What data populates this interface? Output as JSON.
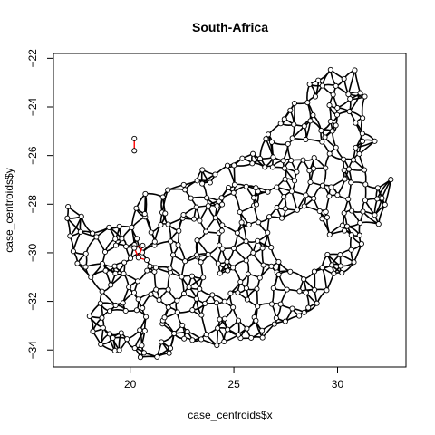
{
  "chart_data": {
    "type": "scatter",
    "title": "South-Africa",
    "xlabel": "case_centroids$x",
    "ylabel": "case_centroids$y",
    "xlim": [
      16.3,
      33.3
    ],
    "ylim": [
      -34.7,
      -21.8
    ],
    "x_ticks": [
      20,
      25,
      30
    ],
    "y_ticks": [
      -22,
      -24,
      -26,
      -28,
      -30,
      -32,
      -34
    ],
    "grid": false,
    "legend": "none",
    "colors": {
      "points": "#000000",
      "network": "#000000",
      "highlight": "#ff0000"
    },
    "highlight_points": [
      {
        "x": 20.2,
        "y": -25.3
      },
      {
        "x": 20.2,
        "y": -25.8
      },
      {
        "x": 20.2,
        "y": -29.8
      },
      {
        "x": 20.6,
        "y": -29.7
      },
      {
        "x": 20.4,
        "y": -30.2
      },
      {
        "x": 20.8,
        "y": -30.3
      }
    ],
    "highlight_edges": [
      [
        20.2,
        -25.3,
        20.2,
        -25.8
      ],
      [
        20.2,
        -29.8,
        20.6,
        -29.7
      ],
      [
        20.6,
        -29.7,
        20.4,
        -30.2
      ],
      [
        20.4,
        -30.2,
        20.8,
        -30.3
      ],
      [
        20.2,
        -29.8,
        20.4,
        -30.2
      ]
    ],
    "outline": [
      [
        16.5,
        -28.6
      ],
      [
        17.0,
        -28.0
      ],
      [
        17.6,
        -28.3
      ],
      [
        18.2,
        -28.9
      ],
      [
        19.2,
        -28.9
      ],
      [
        20.0,
        -28.4
      ],
      [
        20.5,
        -27.6
      ],
      [
        21.5,
        -27.2
      ],
      [
        22.6,
        -26.6
      ],
      [
        24.0,
        -26.3
      ],
      [
        25.2,
        -25.8
      ],
      [
        25.9,
        -25.3
      ],
      [
        26.6,
        -25.0
      ],
      [
        27.4,
        -24.3
      ],
      [
        28.3,
        -23.4
      ],
      [
        29.0,
        -22.6
      ],
      [
        29.8,
        -22.3
      ],
      [
        30.6,
        -22.3
      ],
      [
        31.2,
        -22.6
      ],
      [
        31.4,
        -23.4
      ],
      [
        31.6,
        -24.6
      ],
      [
        31.9,
        -25.8
      ],
      [
        31.8,
        -26.9
      ],
      [
        32.9,
        -26.9
      ],
      [
        32.9,
        -27.4
      ],
      [
        32.3,
        -28.7
      ],
      [
        31.8,
        -29.3
      ],
      [
        31.2,
        -29.8
      ],
      [
        30.6,
        -30.8
      ],
      [
        29.7,
        -31.7
      ],
      [
        28.7,
        -32.4
      ],
      [
        27.6,
        -33.1
      ],
      [
        26.2,
        -33.8
      ],
      [
        25.3,
        -33.9
      ],
      [
        24.6,
        -34.1
      ],
      [
        23.6,
        -33.9
      ],
      [
        22.6,
        -34.0
      ],
      [
        21.6,
        -34.3
      ],
      [
        20.8,
        -34.3
      ],
      [
        20.0,
        -34.8
      ],
      [
        19.4,
        -34.6
      ],
      [
        18.8,
        -34.3
      ],
      [
        18.4,
        -34.1
      ],
      [
        18.1,
        -33.8
      ],
      [
        18.0,
        -33.1
      ],
      [
        17.9,
        -32.5
      ],
      [
        18.2,
        -31.8
      ],
      [
        17.6,
        -30.8
      ],
      [
        17.0,
        -29.8
      ],
      [
        16.7,
        -29.1
      ]
    ],
    "lesotho_hole": [
      [
        27.0,
        -28.6
      ],
      [
        27.8,
        -28.7
      ],
      [
        28.8,
        -28.6
      ],
      [
        29.4,
        -29.2
      ],
      [
        29.3,
        -29.9
      ],
      [
        28.6,
        -30.4
      ],
      [
        27.8,
        -30.6
      ],
      [
        27.2,
        -30.2
      ],
      [
        27.0,
        -29.6
      ],
      [
        26.8,
        -29.1
      ]
    ]
  }
}
